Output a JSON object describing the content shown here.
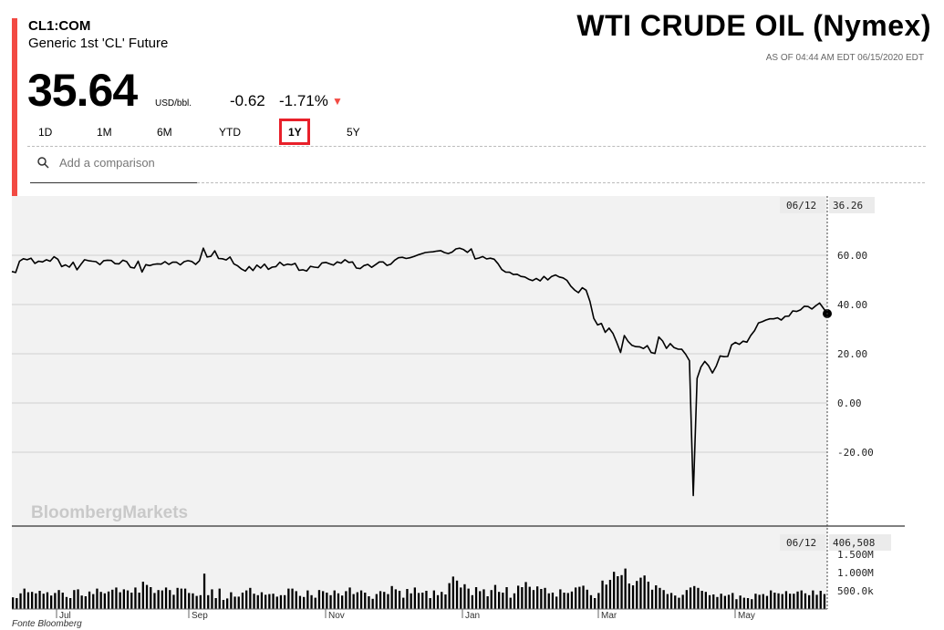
{
  "header": {
    "ticker": "CL1:COM",
    "instrument": "Generic 1st 'CL' Future",
    "title": "WTI CRUDE OIL (Nymex)",
    "as_of": "AS OF 04:44 AM EDT 06/15/2020 EDT"
  },
  "quote": {
    "price": "35.64",
    "unit": "USD/bbl.",
    "change": "-0.62",
    "change_pct": "-1.71%",
    "direction_icon": "triangle-down-icon",
    "down_color": "#f24a43"
  },
  "tabs": [
    {
      "label": "1D",
      "active": false
    },
    {
      "label": "1M",
      "active": false
    },
    {
      "label": "6M",
      "active": false
    },
    {
      "label": "YTD",
      "active": false
    },
    {
      "label": "1Y",
      "active": true
    },
    {
      "label": "5Y",
      "active": false
    }
  ],
  "search": {
    "placeholder": "Add a comparison",
    "icon": "search-icon"
  },
  "watermark": "BloombergMarkets",
  "source": "Fonte Bloomberg",
  "chart_data": [
    {
      "type": "line",
      "series": [
        {
          "values": [
            53.4,
            53,
            57.6,
            58.6,
            58.2,
            58.8,
            56.7,
            57.6,
            57.3,
            58.2,
            57.6,
            59.4,
            58.4,
            55.4,
            56.1,
            55.2,
            57.2,
            54.1,
            56.2,
            58.2,
            57.8,
            57.6,
            57.4,
            56.2,
            57.8,
            58,
            57.9,
            56.6,
            56.5,
            58,
            57.4,
            55.1,
            54.8,
            57.6,
            53.2,
            56.2,
            55.8,
            56.3,
            56.5,
            56.4,
            57.4,
            56.3,
            57.2,
            57.2,
            56.1,
            57.4,
            57.8,
            57.5,
            56.3,
            57.8,
            62.9,
            59.3,
            59.6,
            61.8,
            58.7,
            58.6,
            58.1,
            59.3,
            56.5,
            55.7,
            54.4,
            53.6,
            55.4,
            53.8,
            56,
            54.8,
            56.4,
            54.3,
            55.2,
            55.4,
            57.2,
            55.9,
            56.4,
            56.1,
            56.7,
            53.9,
            54.1,
            53.6,
            55.5,
            55.2,
            55,
            56.9,
            57.1,
            56.5,
            56,
            57.3,
            56.8,
            58.2,
            57.1,
            57.3,
            54.8,
            54.6,
            55.8,
            56.3,
            55.1,
            56.2,
            57.3,
            57.3,
            55.9,
            56.4,
            58,
            59,
            59.2,
            58.7,
            59,
            59.5,
            60.1,
            60.6,
            61.1,
            61.3,
            61.4,
            61.7,
            61.9,
            61.1,
            60.7,
            61.3,
            62.6,
            62.9,
            62.3,
            61.2,
            62.6,
            58.5,
            58.9,
            59.5,
            58.5,
            58.8,
            58.4,
            56.6,
            54.2,
            53.2,
            53.1,
            52.2,
            52.3,
            51.4,
            51.2,
            50.3,
            49.7,
            50.6,
            49.6,
            51.4,
            50,
            51.4,
            52,
            51.2,
            50.8,
            49.8,
            47.5,
            45.9,
            44.8,
            46.8,
            45.8,
            41.3,
            34.4,
            31.7,
            32.3,
            28.7,
            30.4,
            28.3,
            24.6,
            20.5,
            27.4,
            25,
            23.4,
            22.9,
            22.8,
            22.1,
            23.3,
            20.5,
            20.1,
            26.8,
            25.2,
            22.2,
            24.1,
            22.5,
            21.9,
            21.8,
            19.8,
            17.2,
            -37.6,
            10,
            14.6,
            16.9,
            15.1,
            12.2,
            15,
            19.1,
            18.8,
            18.9,
            23.6,
            24.6,
            23.8,
            25.1,
            24.7,
            27.4,
            29.4,
            32.5,
            33,
            33.7,
            34.2,
            34.2,
            34.6,
            33.7,
            35.2,
            35.3,
            37.4,
            37.2,
            37.8,
            39.3,
            39.2,
            38.2,
            39.5,
            40.6,
            38.5,
            36.3
          ]
        }
      ],
      "x_labels": [
        "Jul",
        "Sep",
        "Nov",
        "Jan",
        "Mar",
        "May"
      ],
      "y_ticks": [
        "60.00",
        "40.00",
        "20.00",
        "0.00",
        "-20.00"
      ],
      "y_tick_values": [
        60,
        40,
        20,
        0,
        -20
      ],
      "ylim": [
        -40,
        65
      ],
      "crosshair": {
        "date": "06/12",
        "value": "36.26"
      },
      "line_color": "#000000",
      "plot_bg": "#f2f2f2",
      "grid": true
    },
    {
      "type": "bar",
      "series": [
        {
          "values": [
            320,
            300,
            430,
            560,
            460,
            470,
            430,
            500,
            420,
            460,
            370,
            440,
            520,
            450,
            330,
            300,
            520,
            540,
            370,
            350,
            480,
            410,
            560,
            470,
            430,
            480,
            530,
            590,
            460,
            540,
            510,
            450,
            590,
            450,
            750,
            660,
            600,
            440,
            520,
            510,
            590,
            520,
            390,
            580,
            560,
            560,
            440,
            430,
            360,
            380,
            970,
            380,
            540,
            300,
            560,
            250,
            290,
            460,
            340,
            340,
            450,
            510,
            580,
            420,
            380,
            460,
            390,
            410,
            420,
            340,
            380,
            380,
            560,
            560,
            490,
            360,
            330,
            510,
            380,
            310,
            520,
            490,
            450,
            380,
            510,
            430,
            370,
            490,
            590,
            410,
            460,
            510,
            450,
            350,
            280,
            410,
            490,
            470,
            410,
            630,
            540,
            500,
            310,
            550,
            430,
            590,
            440,
            450,
            500,
            300,
            510,
            380,
            470,
            400,
            710,
            890,
            780,
            590,
            680,
            560,
            380,
            600,
            490,
            540,
            350,
            520,
            660,
            470,
            450,
            600,
            310,
            430,
            640,
            600,
            740,
            610,
            520,
            620,
            550,
            580,
            430,
            450,
            340,
            540,
            450,
            440,
            480,
            590,
            610,
            640,
            530,
            380,
            300,
            440,
            780,
            670,
            800,
            1020,
            900,
            930,
            1110,
            700,
            650,
            770,
            860,
            920,
            750,
            530,
            650,
            580,
            520,
            410,
            440,
            370,
            310,
            390,
            520,
            590,
            630,
            580,
            500,
            470,
            380,
            400,
            330,
            420,
            360,
            390,
            440,
            270,
            370,
            310,
            300,
            270,
            420,
            390,
            410,
            360,
            510,
            450,
            430,
            410,
            490,
            420,
            420,
            480,
            510,
            430,
            380,
            510,
            390,
            500,
            410
          ]
        }
      ],
      "y_ticks": [
        "1.500M",
        "1.000M",
        "500.0k"
      ],
      "y_tick_values": [
        1500,
        1000,
        500
      ],
      "ylim": [
        0,
        1600
      ],
      "crosshair": {
        "date": "06/12",
        "value": "406,508"
      },
      "bar_color": "#000000"
    }
  ]
}
